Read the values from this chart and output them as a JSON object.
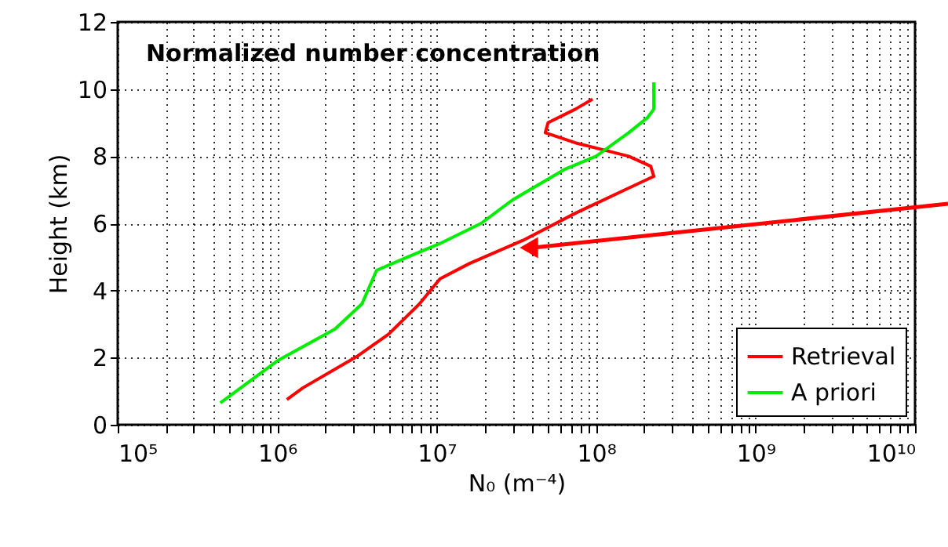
{
  "chart_data": {
    "type": "line",
    "title": "Normalized number concentration",
    "xlabel": "N₀ (m⁻⁴)",
    "ylabel": "Height (km)",
    "log": "x",
    "grid": true,
    "legend": "bottom right",
    "line_style": "solid",
    "marker": "none",
    "xlim": [
      100000,
      10000000000
    ],
    "ylim": [
      0,
      12
    ],
    "yticks": [
      0,
      2,
      4,
      6,
      8,
      10,
      12
    ],
    "xticks": [
      {
        "value": 100000,
        "label": "10⁵"
      },
      {
        "value": 200000,
        "label": null
      },
      {
        "value": 300000,
        "label": null
      },
      {
        "value": 400000,
        "label": null
      },
      {
        "value": 500000,
        "label": null
      },
      {
        "value": 600000,
        "label": null
      },
      {
        "value": 700000,
        "label": null
      },
      {
        "value": 800000,
        "label": null
      },
      {
        "value": 900000,
        "label": null
      },
      {
        "value": 1000000,
        "label": "10⁶"
      },
      {
        "value": 2000000,
        "label": null
      },
      {
        "value": 3000000,
        "label": null
      },
      {
        "value": 4000000,
        "label": null
      },
      {
        "value": 5000000,
        "label": null
      },
      {
        "value": 6000000,
        "label": null
      },
      {
        "value": 7000000,
        "label": null
      },
      {
        "value": 8000000,
        "label": null
      },
      {
        "value": 9000000,
        "label": null
      },
      {
        "value": 10000000,
        "label": "10⁷"
      },
      {
        "value": 20000000,
        "label": null
      },
      {
        "value": 30000000,
        "label": null
      },
      {
        "value": 40000000,
        "label": null
      },
      {
        "value": 50000000,
        "label": null
      },
      {
        "value": 60000000,
        "label": null
      },
      {
        "value": 70000000,
        "label": null
      },
      {
        "value": 80000000,
        "label": null
      },
      {
        "value": 90000000,
        "label": null
      },
      {
        "value": 100000000,
        "label": "10⁸"
      },
      {
        "value": 200000000,
        "label": null
      },
      {
        "value": 300000000,
        "label": null
      },
      {
        "value": 400000000,
        "label": null
      },
      {
        "value": 500000000,
        "label": null
      },
      {
        "value": 600000000,
        "label": null
      },
      {
        "value": 700000000,
        "label": null
      },
      {
        "value": 800000000,
        "label": null
      },
      {
        "value": 900000000,
        "label": null
      },
      {
        "value": 1000000000,
        "label": "10⁹"
      },
      {
        "value": 2000000000,
        "label": null
      },
      {
        "value": 3000000000,
        "label": null
      },
      {
        "value": 4000000000,
        "label": null
      },
      {
        "value": 5000000000,
        "label": null
      },
      {
        "value": 6000000000,
        "label": null
      },
      {
        "value": 7000000000,
        "label": null
      },
      {
        "value": 8000000000,
        "label": null
      },
      {
        "value": 9000000000,
        "label": null
      },
      {
        "value": 10000000000,
        "label": "10¹⁰"
      }
    ],
    "series": [
      {
        "name": "Retrieval",
        "color": "#ff0000",
        "x": [
          1150000,
          1450000,
          3200000,
          5000000,
          7800000,
          10500000,
          16000000,
          35000000,
          74000000,
          160000000,
          230000000,
          220000000,
          160000000,
          74000000,
          48000000,
          50000000,
          74000000,
          95000000
        ],
        "values": [
          0.75,
          1.1,
          2.05,
          2.7,
          3.6,
          4.35,
          4.8,
          5.5,
          6.3,
          7.05,
          7.4,
          7.7,
          8.0,
          8.4,
          8.7,
          9.0,
          9.4,
          9.7
        ]
      },
      {
        "name": "A priori",
        "color": "#00ee00",
        "x": [
          440000,
          1000000,
          2300000,
          3400000,
          4200000,
          6600000,
          10500000,
          19000000,
          30000000,
          63000000,
          100000000,
          160000000,
          210000000,
          230000000,
          230000000
        ],
        "values": [
          0.65,
          1.9,
          2.85,
          3.6,
          4.6,
          5.0,
          5.4,
          6.0,
          6.7,
          7.6,
          8.0,
          8.7,
          9.15,
          9.4,
          10.2
        ]
      }
    ]
  }
}
